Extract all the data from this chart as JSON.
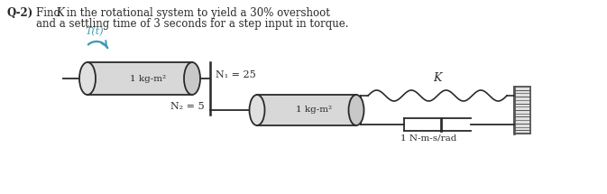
{
  "bg_color": "#ffffff",
  "line_color": "#2a2a2a",
  "drum_fill": "#d8d8d8",
  "drum_edge": "#2a2a2a",
  "spring_color": "#2a2a2a",
  "teal_color": "#3a9ab0",
  "label_T": "T(t)",
  "label_I1": "1 kg-m²",
  "label_N1": "N₁ = 25",
  "label_N2": "N₂ = 5",
  "label_I2": "1 kg-m²",
  "label_K": "K",
  "label_b": "1 N-m-s/rad",
  "figw": 6.73,
  "figh": 2.15,
  "dpi": 100
}
